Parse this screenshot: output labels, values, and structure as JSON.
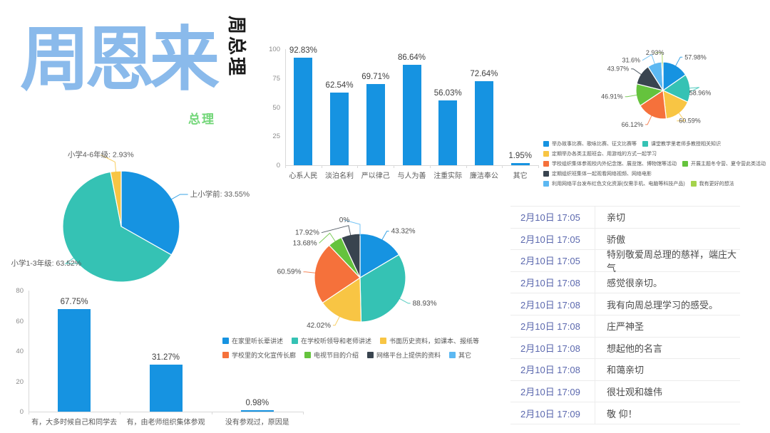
{
  "colors": {
    "blue": "#1693E1",
    "teal": "#35C2B4",
    "yellow": "#F8C544",
    "orange": "#F5713B",
    "green": "#65C33D",
    "dark": "#39444F",
    "light_blue": "#5CB8F2",
    "light_green": "#A5D34C",
    "title_blue": "#8ABAEB",
    "subtitle_green": "#72D678",
    "time_text": "#5B68AE",
    "comment_text": "#4A4A4A"
  },
  "header": {
    "title": "周恩来",
    "vertical_label": "周总理",
    "subtitle": "总理"
  },
  "chart_data": [
    {
      "id": "traits_bar",
      "type": "bar",
      "categories": [
        "心系人民",
        "淡泊名利",
        "严以律己",
        "与人为善",
        "注重实际",
        "廉洁奉公",
        "其它"
      ],
      "values": [
        92.83,
        62.54,
        69.71,
        86.64,
        56.03,
        72.64,
        1.95
      ],
      "data_labels": [
        "92.83%",
        "62.54%",
        "69.71%",
        "86.64%",
        "56.03%",
        "72.64%",
        "1.95%"
      ],
      "ylim": [
        0,
        100
      ],
      "yticks": [
        100,
        75,
        50,
        25,
        0
      ],
      "grid": false,
      "legend_position": "none",
      "bar_color_key": "blue"
    },
    {
      "id": "activity_pie",
      "type": "pie",
      "slices": [
        {
          "label": "举办故事比赛、歌咏比赛、征文比赛等",
          "value": 57.98,
          "data_label": "57.98%",
          "color_key": "blue"
        },
        {
          "label": "课堂教学里老师多教授相关知识",
          "value": 58.96,
          "data_label": "58.96%",
          "color_key": "teal"
        },
        {
          "label": "定期举办各类主题班会、用游戏的方式一起学习",
          "value": 60.59,
          "data_label": "60.59%",
          "color_key": "yellow"
        },
        {
          "label": "学校组织集体参观校内外纪念馆、展览馆、博物馆等活动",
          "value": 66.12,
          "data_label": "66.12%",
          "color_key": "orange"
        },
        {
          "label": "开展主题冬令营、夏令营此类活动",
          "value": 46.91,
          "data_label": "46.91%",
          "color_key": "green"
        },
        {
          "label": "定期组织班集体一起观看网络视频、网络电影",
          "value": 43.97,
          "data_label": "43.97%",
          "color_key": "dark"
        },
        {
          "label": "利用网络平台发布红色文化资源(仅需手机、电脑等科技产品)",
          "value": 31.6,
          "data_label": "31.6%",
          "color_key": "light_blue"
        },
        {
          "label": "我有更好的想法",
          "value": 2.93,
          "data_label": "2.93%",
          "color_key": "light_green"
        }
      ],
      "legend_position": "bottom"
    },
    {
      "id": "grade_pie",
      "type": "pie",
      "slices": [
        {
          "label": "上小学前",
          "value": 33.55,
          "data_label": "上小学前: 33.55%",
          "color_key": "blue"
        },
        {
          "label": "小学1-3年级",
          "value": 63.52,
          "data_label": "小学1-3年级: 63.52%",
          "color_key": "teal"
        },
        {
          "label": "小学4-6年级",
          "value": 2.93,
          "data_label": "小学4-6年级: 2.93%",
          "color_key": "yellow"
        }
      ],
      "legend_position": "none"
    },
    {
      "id": "visit_bar",
      "type": "bar",
      "categories": [
        "有，大多时候自己和同学去",
        "有，由老师组织集体参观",
        "没有参观过，原因是"
      ],
      "values": [
        67.75,
        31.27,
        0.98
      ],
      "data_labels": [
        "67.75%",
        "31.27%",
        "0.98%"
      ],
      "ylim": [
        0,
        80
      ],
      "yticks": [
        80,
        60,
        40,
        20,
        0
      ],
      "grid": false,
      "legend_position": "none",
      "bar_color_key": "blue"
    },
    {
      "id": "source_pie",
      "type": "pie",
      "slices": [
        {
          "label": "在家里听长辈讲述",
          "value": 43.32,
          "data_label": "43.32%",
          "color_key": "blue"
        },
        {
          "label": "在学校听领导和老师讲述",
          "value": 88.93,
          "data_label": "88.93%",
          "color_key": "teal"
        },
        {
          "label": "书面历史资料，如课本、报纸等",
          "value": 42.02,
          "data_label": "42.02%",
          "color_key": "yellow"
        },
        {
          "label": "学校里的文化宣传长廊",
          "value": 60.59,
          "data_label": "60.59%",
          "color_key": "orange"
        },
        {
          "label": "电视节目的介绍",
          "value": 13.68,
          "data_label": "13.68%",
          "color_key": "green"
        },
        {
          "label": "网络平台上提供的资料",
          "value": 17.92,
          "data_label": "17.92%",
          "color_key": "dark"
        },
        {
          "label": "其它",
          "value": 0,
          "data_label": "0%",
          "color_key": "light_blue"
        }
      ],
      "legend_position": "bottom"
    }
  ],
  "comments_table": {
    "rows": [
      {
        "time": "2月10日 17:05",
        "text": "亲切"
      },
      {
        "time": "2月10日 17:05",
        "text": "骄傲"
      },
      {
        "time": "2月10日 17:05",
        "text": "特别敬爱周总理的慈祥，端庄大气"
      },
      {
        "time": "2月10日 17:08",
        "text": "感觉很亲切。"
      },
      {
        "time": "2月10日 17:08",
        "text": "我有向周总理学习的感受。"
      },
      {
        "time": "2月10日 17:08",
        "text": "庄严神圣"
      },
      {
        "time": "2月10日 17:08",
        "text": "想起他的名言"
      },
      {
        "time": "2月10日 17:08",
        "text": "和蔼亲切"
      },
      {
        "time": "2月10日 17:09",
        "text": "很壮观和雄伟"
      },
      {
        "time": "2月10日 17:09",
        "text": "敬 仰！"
      }
    ]
  }
}
